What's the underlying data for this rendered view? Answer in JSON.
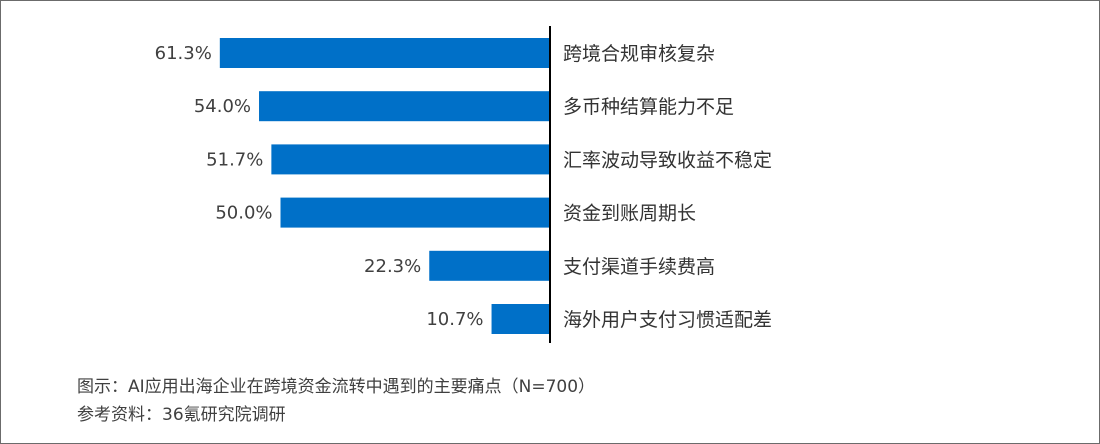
{
  "chart_data": {
    "type": "bar",
    "orientation": "horizontal",
    "direction": "bars extend leftward from axis",
    "categories": [
      "跨境合规审核复杂",
      "多币种结算能力不足",
      "汇率波动导致收益不稳定",
      "资金到账周期长",
      "支付渠道手续费高",
      "海外用户支付习惯适配差"
    ],
    "values": [
      61.3,
      54.0,
      51.7,
      50.0,
      22.3,
      10.7
    ],
    "value_labels": [
      "61.3%",
      "54.0%",
      "51.7%",
      "50.0%",
      "22.3%",
      "10.7%"
    ],
    "bar_color": "#0070C8",
    "grid": false,
    "legend": "none"
  },
  "caption": {
    "figure": "图示：AI应用出海企业在跨境资金流转中遇到的主要痛点（N=700）",
    "source": "参考资料：36氪研究院调研"
  }
}
